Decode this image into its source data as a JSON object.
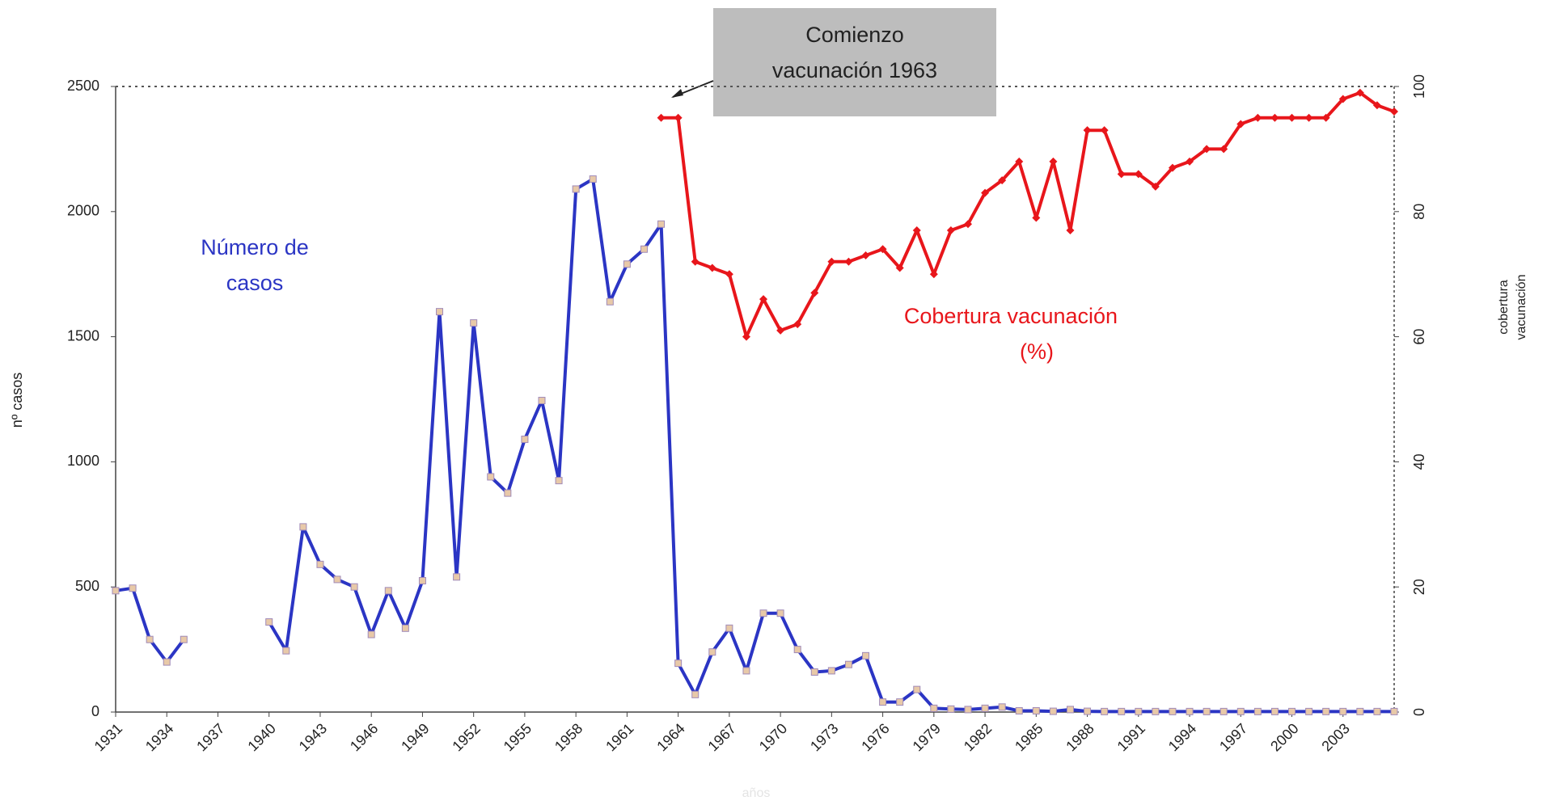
{
  "chart_data": {
    "type": "line",
    "annotations": {
      "cases": "Número de casos",
      "coverage": "Cobertura vacunación (%)",
      "box": "Comienzo vacunación 1963"
    },
    "ylabel": "nº casos",
    "y2label": "cobertura vacunación",
    "xlabel": "años",
    "categories": [
      "1931",
      null,
      null,
      "1934",
      null,
      null,
      "1937",
      null,
      null,
      "1940",
      null,
      null,
      "1943",
      null,
      null,
      "1946",
      null,
      null,
      "1949",
      null,
      null,
      "1952",
      null,
      null,
      "1955",
      null,
      null,
      "1958",
      null,
      null,
      "1961",
      null,
      null,
      "1964",
      null,
      null,
      "1967",
      null,
      null,
      "1970",
      null,
      null,
      "1973",
      null,
      null,
      "1976",
      null,
      null,
      "1979",
      null,
      null,
      "1982",
      null,
      null,
      "1985",
      null,
      null,
      "1988",
      null,
      null,
      "1991",
      null,
      null,
      "1994",
      null,
      null,
      "1997",
      null,
      null,
      "2000",
      null,
      null,
      "2003",
      null,
      null,
      null
    ],
    "ylim": [
      0,
      2500
    ],
    "yticks": [
      0,
      500,
      1000,
      1500,
      2000,
      2500
    ],
    "y2lim": [
      0,
      100
    ],
    "y2ticks": [
      0,
      20,
      40,
      60,
      80,
      100
    ],
    "series": [
      {
        "name": "Número de casos",
        "color": "#2b35c4",
        "values": [
          485,
          495,
          290,
          200,
          290,
          null,
          null,
          null,
          null,
          360,
          245,
          740,
          590,
          530,
          500,
          310,
          485,
          335,
          525,
          1600,
          540,
          1555,
          940,
          875,
          1090,
          1245,
          925,
          2090,
          2130,
          1640,
          1790,
          1850,
          1950,
          195,
          70,
          240,
          335,
          165,
          395,
          395,
          250,
          160,
          165,
          190,
          225,
          40,
          40,
          90,
          15,
          12,
          10,
          15,
          20,
          5,
          5,
          3,
          10,
          3,
          2,
          2,
          2,
          2,
          2,
          2,
          2,
          2,
          2,
          2,
          2,
          2,
          2,
          2,
          2,
          2,
          2,
          2
        ]
      },
      {
        "name": "Cobertura vacunación (%)",
        "color": "#e8161b",
        "axis": "y2",
        "values": [
          null,
          null,
          null,
          null,
          null,
          null,
          null,
          null,
          null,
          null,
          null,
          null,
          null,
          null,
          null,
          null,
          null,
          null,
          null,
          null,
          null,
          null,
          null,
          null,
          null,
          null,
          null,
          null,
          null,
          null,
          null,
          null,
          95,
          95,
          72,
          71,
          70,
          60,
          66,
          61,
          62,
          67,
          72,
          72,
          73,
          74,
          71,
          77,
          70,
          77,
          78,
          83,
          85,
          88,
          79,
          88,
          77,
          93,
          93,
          86,
          86,
          84,
          87,
          88,
          90,
          90,
          94,
          95,
          95,
          95,
          95,
          95,
          98,
          99,
          97,
          96
        ]
      }
    ]
  }
}
